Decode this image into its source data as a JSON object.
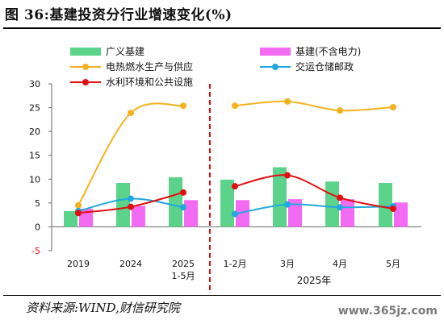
{
  "title": "图 36:基建投资分行业增速变化(%)",
  "source": "资料来源:WIND,财信研究院",
  "watermark": "www.365jz.com",
  "chart_data": {
    "type": "bar",
    "ylim": [
      -5,
      30
    ],
    "yticks": [
      -5,
      0,
      5,
      10,
      15,
      20,
      25,
      30
    ],
    "grid": false,
    "legend_position": "top",
    "group_label": "2025年",
    "categories": [
      {
        "label": "2019",
        "sub": ""
      },
      {
        "label": "2024",
        "sub": ""
      },
      {
        "label": "2025",
        "sub": "1-5月"
      },
      {
        "label": "1-2月",
        "sub": ""
      },
      {
        "label": "3月",
        "sub": ""
      },
      {
        "label": "4月",
        "sub": ""
      },
      {
        "label": "5月",
        "sub": ""
      }
    ],
    "bar_series": [
      {
        "name": "广义基建",
        "color": "#5BD38A",
        "values": [
          3.3,
          9.2,
          10.4,
          9.9,
          12.5,
          9.5,
          9.2
        ]
      },
      {
        "name": "基建(不含电力)",
        "color": "#F26BF2",
        "values": [
          3.8,
          4.4,
          5.6,
          5.6,
          5.8,
          5.8,
          5.1
        ]
      }
    ],
    "line_series": [
      {
        "name": "电热燃水生产与供应",
        "color": "#F5B21E",
        "panel": 0,
        "values": [
          4.5,
          23.9,
          25.4
        ]
      },
      {
        "name": "电热燃水生产与供应",
        "color": "#F5B21E",
        "panel": 1,
        "values": [
          25.4,
          26.3,
          24.4,
          25.1
        ]
      },
      {
        "name": "交运仓储邮政",
        "color": "#22A8E0",
        "panel": 0,
        "values": [
          3.3,
          5.9,
          4.1
        ]
      },
      {
        "name": "交运仓储邮政",
        "color": "#22A8E0",
        "panel": 1,
        "values": [
          2.7,
          4.7,
          4.1,
          4.3
        ]
      },
      {
        "name": "水利环境和公共设施",
        "color": "#E01010",
        "panel": 0,
        "values": [
          2.9,
          4.2,
          7.2
        ]
      },
      {
        "name": "水利环境和公共设施",
        "color": "#E01010",
        "panel": 1,
        "values": [
          8.5,
          10.8,
          6.1,
          3.8
        ]
      }
    ],
    "legend": [
      {
        "name": "广义基建",
        "kind": "bar",
        "color": "#5BD38A"
      },
      {
        "name": "基建(不含电力)",
        "kind": "bar",
        "color": "#F26BF2"
      },
      {
        "name": "电热燃水生产与供应",
        "kind": "line",
        "color": "#F5B21E"
      },
      {
        "name": "交运仓储邮政",
        "kind": "line",
        "color": "#22A8E0"
      },
      {
        "name": "水利环境和公共设施",
        "kind": "line",
        "color": "#E01010"
      }
    ],
    "divider_color": "#E01010"
  }
}
